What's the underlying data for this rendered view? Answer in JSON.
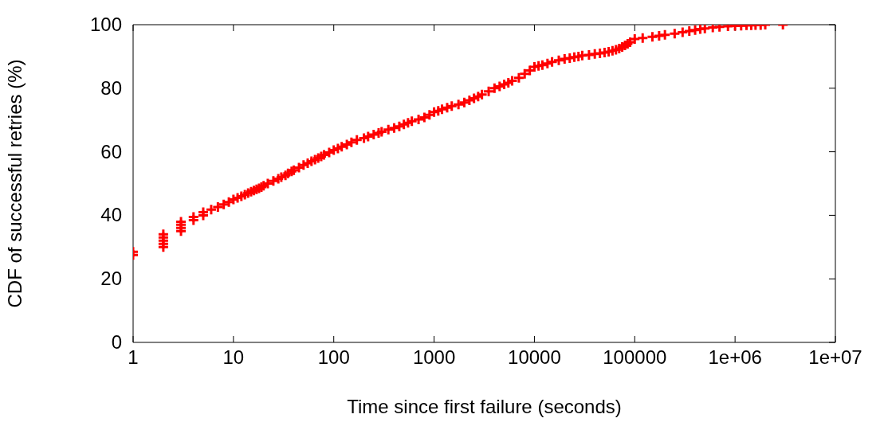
{
  "chart_data": {
    "type": "scatter",
    "xlabel": "Time since first failure (seconds)",
    "ylabel": "CDF of successful retries (%)",
    "log": "x",
    "marker": "cross",
    "grid": false,
    "legend": false,
    "xlim": [
      1,
      10000000
    ],
    "xticks": [
      1,
      10,
      100,
      1000,
      10000,
      100000,
      {
        "value": 1000000,
        "label": "1e+06"
      },
      {
        "value": 10000000,
        "label": "1e+07"
      }
    ],
    "ylim": [
      0,
      100
    ],
    "yticks": [
      0,
      20,
      40,
      60,
      80,
      100
    ],
    "series": [
      {
        "color": "#ff0000",
        "x": [
          1,
          1,
          2,
          2,
          2,
          2,
          2,
          3,
          3,
          3,
          3,
          4,
          4,
          5,
          5,
          6,
          7,
          8,
          9,
          10,
          11,
          12,
          13,
          14,
          15,
          16,
          17,
          18,
          19,
          20,
          22,
          25,
          28,
          30,
          33,
          35,
          38,
          40,
          45,
          50,
          55,
          60,
          65,
          70,
          75,
          80,
          90,
          100,
          110,
          120,
          135,
          150,
          170,
          200,
          220,
          250,
          280,
          300,
          350,
          400,
          450,
          500,
          550,
          600,
          700,
          800,
          900,
          1000,
          1100,
          1200,
          1350,
          1500,
          1750,
          2000,
          2250,
          2500,
          2750,
          3000,
          3500,
          4000,
          4500,
          5000,
          5500,
          6000,
          7000,
          8000,
          9000,
          10000,
          11000,
          12000,
          13500,
          15000,
          17500,
          20000,
          22500,
          25000,
          27500,
          30000,
          35000,
          40000,
          45000,
          50000,
          55000,
          60000,
          65000,
          70000,
          75000,
          80000,
          85000,
          90000,
          100000,
          120000,
          150000,
          175000,
          200000,
          250000,
          300000,
          350000,
          400000,
          450000,
          500000,
          600000,
          700000,
          850000,
          1000000,
          1150000,
          1300000,
          1450000,
          1600000,
          1800000,
          2000000,
          3000000
        ],
        "values": [
          27.5,
          28.5,
          30,
          31,
          32,
          33,
          34,
          35,
          36,
          37,
          38,
          38.5,
          39.5,
          40,
          41,
          41.8,
          42.6,
          43.4,
          44.2,
          45,
          45.5,
          46,
          46.5,
          47,
          47.4,
          47.8,
          48.2,
          48.5,
          48.9,
          49.3,
          50,
          50.8,
          51.5,
          52,
          52.6,
          53.2,
          53.8,
          54.2,
          55,
          55.8,
          56.4,
          57,
          57.5,
          58,
          58.5,
          59,
          59.8,
          60.5,
          61,
          61.6,
          62.3,
          63,
          63.7,
          64.3,
          64.8,
          65.4,
          65.9,
          66.3,
          67,
          67.5,
          68,
          68.6,
          69.1,
          69.6,
          70.2,
          70.8,
          71.6,
          72.5,
          72.9,
          73.4,
          73.9,
          74.4,
          74.9,
          75.5,
          76.2,
          76.8,
          77.4,
          78,
          79,
          80,
          80.6,
          81.2,
          81.7,
          82.3,
          83.3,
          84.5,
          85.6,
          86.7,
          87,
          87.3,
          87.8,
          88.3,
          88.8,
          89.2,
          89.5,
          89.8,
          90,
          90.3,
          90.5,
          90.8,
          91,
          91.2,
          91.5,
          91.8,
          92.1,
          92.5,
          93,
          93.5,
          94,
          94.5,
          95.5,
          95.8,
          96.2,
          96.5,
          96.8,
          97.2,
          97.6,
          98,
          98.3,
          98.6,
          98.8,
          99.1,
          99.3,
          99.5,
          99.6,
          99.7,
          99.8,
          99.8,
          99.9,
          99.9,
          100,
          100
        ]
      }
    ]
  }
}
